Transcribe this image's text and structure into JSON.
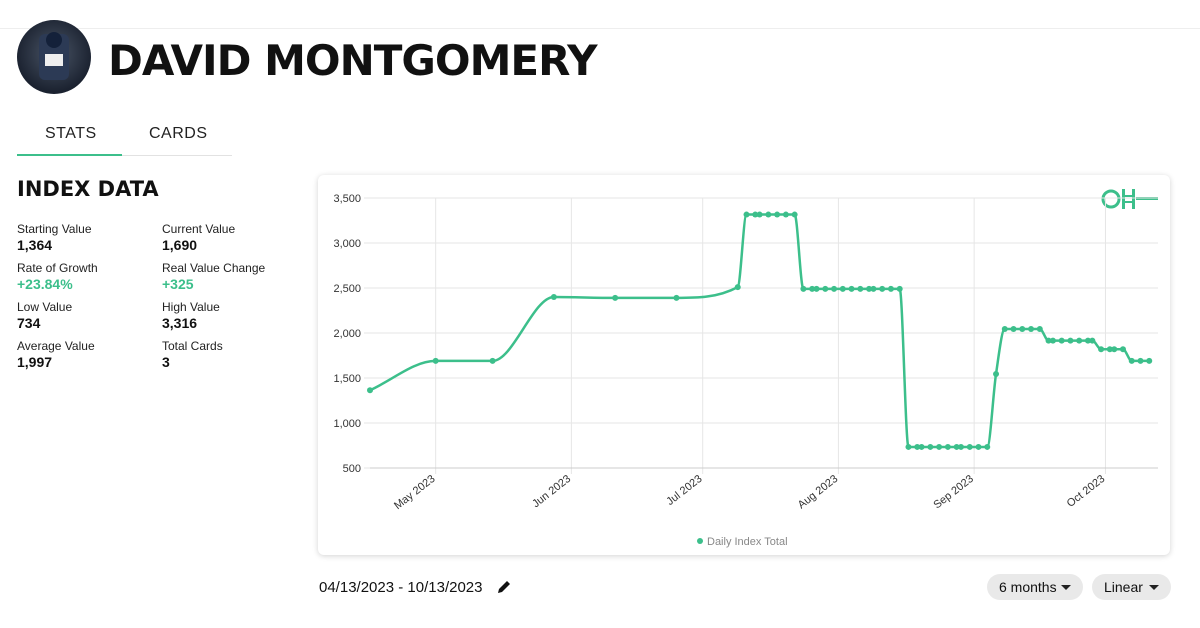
{
  "header": {
    "title": "DAVID MONTGOMERY"
  },
  "tabs": [
    "STATS",
    "CARDS"
  ],
  "section_title": "INDEX DATA",
  "stats": [
    {
      "label": "Starting Value",
      "value": "1,364"
    },
    {
      "label": "Current Value",
      "value": "1,690"
    },
    {
      "label": "Rate of Growth",
      "value": "+23.84%"
    },
    {
      "label": "Real Value Change",
      "value": "+325"
    },
    {
      "label": "Low Value",
      "value": "734"
    },
    {
      "label": "High Value",
      "value": "3,316"
    },
    {
      "label": "Average Value",
      "value": "1,997"
    },
    {
      "label": "Total Cards",
      "value": "3"
    }
  ],
  "chart_data": {
    "type": "line",
    "x": [
      "2023-04-16",
      "2023-05-01",
      "2023-05-14",
      "2023-05-28",
      "2023-06-11",
      "2023-06-25",
      "2023-07-09",
      "2023-07-11",
      "2023-07-13",
      "2023-07-14",
      "2023-07-16",
      "2023-07-18",
      "2023-07-20",
      "2023-07-22",
      "2023-07-24",
      "2023-07-26",
      "2023-07-27",
      "2023-07-29",
      "2023-07-31",
      "2023-08-02",
      "2023-08-04",
      "2023-08-06",
      "2023-08-08",
      "2023-08-09",
      "2023-08-11",
      "2023-08-13",
      "2023-08-15",
      "2023-08-17",
      "2023-08-19",
      "2023-08-20",
      "2023-08-22",
      "2023-08-24",
      "2023-08-26",
      "2023-08-28",
      "2023-08-29",
      "2023-08-31",
      "2023-09-02",
      "2023-09-04",
      "2023-09-06",
      "2023-09-08",
      "2023-09-10",
      "2023-09-12",
      "2023-09-14",
      "2023-09-16",
      "2023-09-18",
      "2023-09-19",
      "2023-09-21",
      "2023-09-23",
      "2023-09-25",
      "2023-09-27",
      "2023-09-28",
      "2023-09-30",
      "2023-10-02",
      "2023-10-03",
      "2023-10-05",
      "2023-10-07",
      "2023-10-09",
      "2023-10-11"
    ],
    "series": [
      {
        "name": "Daily Index Total",
        "color": "#3cbf8b",
        "values": [
          1364,
          1690,
          1690,
          2400,
          2390,
          2390,
          2510,
          3316,
          3316,
          3316,
          3316,
          3316,
          3316,
          3316,
          2490,
          2490,
          2490,
          2490,
          2490,
          2490,
          2490,
          2490,
          2490,
          2490,
          2490,
          2490,
          2490,
          734,
          734,
          734,
          734,
          734,
          734,
          734,
          734,
          734,
          734,
          734,
          1545,
          2045,
          2045,
          2045,
          2045,
          2045,
          1915,
          1915,
          1915,
          1915,
          1915,
          1915,
          1915,
          1820,
          1820,
          1820,
          1820,
          1690,
          1690,
          1690
        ]
      }
    ],
    "xlim": [
      "2023-04-16",
      "2023-10-13"
    ],
    "xticks": [
      {
        "value": "2023-05-01",
        "label": "May 2023"
      },
      {
        "value": "2023-06-01",
        "label": "Jun 2023"
      },
      {
        "value": "2023-07-01",
        "label": "Jul 2023"
      },
      {
        "value": "2023-08-01",
        "label": "Aug 2023"
      },
      {
        "value": "2023-09-01",
        "label": "Sep 2023"
      },
      {
        "value": "2023-10-01",
        "label": "Oct 2023"
      }
    ],
    "ylim": [
      500,
      3500
    ],
    "yticks": [
      500,
      {
        "value": 1000,
        "label": "1,000"
      },
      {
        "value": 1500,
        "label": "1,500"
      },
      {
        "value": 2000,
        "label": "2,000"
      },
      {
        "value": 2500,
        "label": "2,500"
      },
      {
        "value": 3000,
        "label": "3,000"
      },
      {
        "value": 3500,
        "label": "3,500"
      }
    ],
    "grid": true,
    "legend": "bottom"
  },
  "date_range": "04/13/2023 - 10/13/2023",
  "controls": [
    "6 months",
    "Linear"
  ]
}
